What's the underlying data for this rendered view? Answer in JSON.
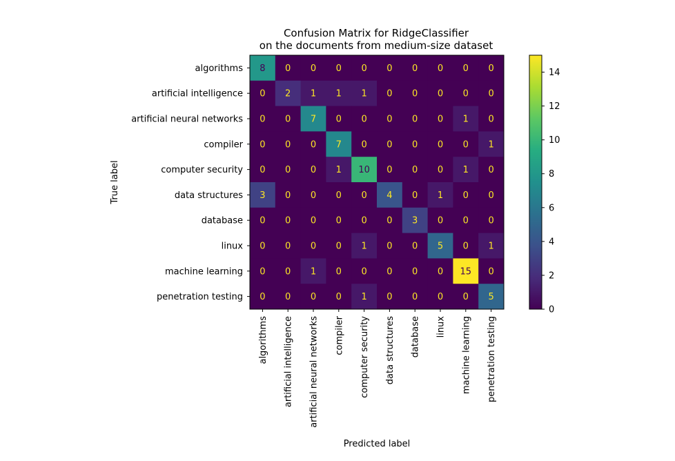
{
  "chart_data": {
    "type": "heatmap",
    "title": "Confusion Matrix for RidgeClassifier\non the documents from medium-size dataset",
    "xlabel": "Predicted label",
    "ylabel": "True label",
    "rows": [
      "algorithms",
      "artificial intelligence",
      "artificial neural networks",
      "compiler",
      "computer security",
      "data structures",
      "database",
      "linux",
      "machine learning",
      "penetration testing"
    ],
    "columns": [
      "algorithms",
      "artificial intelligence",
      "artificial neural networks",
      "compiler",
      "computer security",
      "data structures",
      "database",
      "linux",
      "machine learning",
      "penetration testing"
    ],
    "values": [
      [
        8,
        0,
        0,
        0,
        0,
        0,
        0,
        0,
        0,
        0
      ],
      [
        0,
        2,
        1,
        1,
        1,
        0,
        0,
        0,
        0,
        0
      ],
      [
        0,
        0,
        7,
        0,
        0,
        0,
        0,
        0,
        1,
        0
      ],
      [
        0,
        0,
        0,
        7,
        0,
        0,
        0,
        0,
        0,
        1
      ],
      [
        0,
        0,
        0,
        1,
        10,
        0,
        0,
        0,
        1,
        0
      ],
      [
        3,
        0,
        0,
        0,
        0,
        4,
        0,
        1,
        0,
        0
      ],
      [
        0,
        0,
        0,
        0,
        0,
        0,
        3,
        0,
        0,
        0
      ],
      [
        0,
        0,
        0,
        0,
        1,
        0,
        0,
        5,
        0,
        1
      ],
      [
        0,
        0,
        1,
        0,
        0,
        0,
        0,
        0,
        15,
        0
      ],
      [
        0,
        0,
        0,
        0,
        1,
        0,
        0,
        0,
        0,
        5
      ]
    ],
    "colorbar": {
      "min": 0,
      "max": 15,
      "ticks": [
        0,
        2,
        4,
        6,
        8,
        10,
        12,
        14
      ],
      "colormap": "viridis"
    },
    "grid": false,
    "legend": "none"
  }
}
